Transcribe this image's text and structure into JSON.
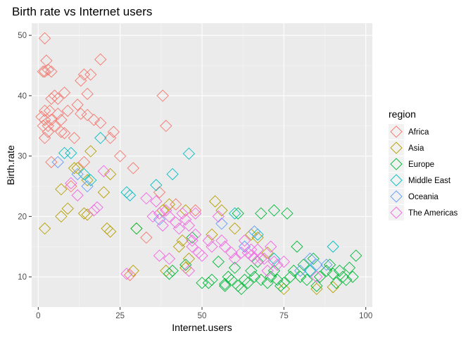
{
  "chart_data": {
    "type": "scatter",
    "title": "Birth rate vs Internet users",
    "xlabel": "Internet.users",
    "ylabel": "Birth.rate",
    "xlim": [
      -2,
      102
    ],
    "ylim": [
      5,
      52
    ],
    "xticks": [
      0,
      25,
      50,
      75,
      100
    ],
    "yticks": [
      10,
      20,
      30,
      40,
      50
    ],
    "xtick_labels": [
      "0",
      "25",
      "50",
      "75",
      "100"
    ],
    "ytick_labels": [
      "10",
      "20",
      "30",
      "40",
      "50"
    ],
    "grid": true,
    "marker": "hollow-diamond",
    "legend": {
      "title": "region",
      "position": "right"
    },
    "series": [
      {
        "name": "Africa",
        "color": "#F8766D",
        "points": [
          [
            2,
            49.5
          ],
          [
            2,
            44
          ],
          [
            2.5,
            45.8
          ],
          [
            3,
            44.3
          ],
          [
            1.5,
            44
          ],
          [
            4,
            44
          ],
          [
            4,
            39.5
          ],
          [
            5,
            40
          ],
          [
            6,
            39.5
          ],
          [
            8,
            40.5
          ],
          [
            13,
            42.5
          ],
          [
            14,
            43.5
          ],
          [
            16,
            43.5
          ],
          [
            19,
            46
          ],
          [
            15,
            40.3
          ],
          [
            12,
            38.5
          ],
          [
            13,
            37
          ],
          [
            15,
            36.8
          ],
          [
            9,
            37.5
          ],
          [
            1,
            36.5
          ],
          [
            2,
            37.5
          ],
          [
            1.5,
            35
          ],
          [
            2,
            33
          ],
          [
            3,
            34
          ],
          [
            2,
            36
          ],
          [
            3,
            35
          ],
          [
            4,
            36
          ],
          [
            5,
            35
          ],
          [
            3.5,
            37.5
          ],
          [
            6,
            37
          ],
          [
            7,
            34
          ],
          [
            7,
            36
          ],
          [
            8,
            33.8
          ],
          [
            11,
            33
          ],
          [
            17,
            36
          ],
          [
            19,
            35.5
          ],
          [
            23,
            34
          ],
          [
            22,
            33
          ],
          [
            25,
            30
          ],
          [
            29,
            28
          ],
          [
            38,
            40
          ],
          [
            39,
            35
          ],
          [
            37,
            24
          ],
          [
            42,
            22
          ],
          [
            48,
            21
          ],
          [
            33,
            16.5
          ],
          [
            28,
            10.3
          ],
          [
            4,
            29
          ],
          [
            14,
            29
          ],
          [
            10,
            25
          ]
        ]
      },
      {
        "name": "Asia",
        "color": "#B79F00",
        "points": [
          [
            2,
            18
          ],
          [
            7,
            20
          ],
          [
            9,
            21.3
          ],
          [
            14,
            20.5
          ],
          [
            15,
            20.3
          ],
          [
            12,
            28
          ],
          [
            15,
            26
          ],
          [
            20,
            24
          ],
          [
            16,
            30.8
          ],
          [
            22,
            17.5
          ],
          [
            22,
            27
          ],
          [
            29,
            11
          ],
          [
            30,
            18
          ],
          [
            38,
            21
          ],
          [
            45,
            21
          ],
          [
            43,
            15
          ],
          [
            45,
            11.5
          ],
          [
            39,
            11
          ],
          [
            46,
            13
          ],
          [
            44,
            16
          ],
          [
            54,
            22.5
          ],
          [
            56,
            21
          ],
          [
            60,
            18
          ],
          [
            65,
            17
          ],
          [
            67,
            16.5
          ],
          [
            70,
            14
          ],
          [
            75,
            8
          ],
          [
            90,
            8.3
          ],
          [
            85,
            8
          ],
          [
            7,
            24.5
          ],
          [
            11,
            28
          ],
          [
            21,
            18
          ],
          [
            40,
            22
          ],
          [
            53,
            17
          ]
        ]
      },
      {
        "name": "Europe",
        "color": "#00BA38",
        "points": [
          [
            30,
            18
          ],
          [
            40,
            10.5
          ],
          [
            41,
            11
          ],
          [
            45,
            12
          ],
          [
            47,
            16.5
          ],
          [
            50,
            9
          ],
          [
            52,
            9
          ],
          [
            53,
            9.5
          ],
          [
            55,
            12.5
          ],
          [
            57,
            8.8
          ],
          [
            58,
            10
          ],
          [
            59,
            9.5
          ],
          [
            60,
            11.5
          ],
          [
            61,
            8.5
          ],
          [
            62,
            8
          ],
          [
            63,
            9.5
          ],
          [
            65,
            11
          ],
          [
            66,
            10
          ],
          [
            67,
            12.5
          ],
          [
            68,
            9.5
          ],
          [
            70,
            9
          ],
          [
            71,
            10
          ],
          [
            72,
            11
          ],
          [
            73,
            9.5
          ],
          [
            74,
            8.5
          ],
          [
            75,
            9
          ],
          [
            77,
            10
          ],
          [
            78,
            11
          ],
          [
            79,
            15
          ],
          [
            80,
            10
          ],
          [
            81,
            12
          ],
          [
            82,
            9.5
          ],
          [
            83,
            11
          ],
          [
            84,
            13
          ],
          [
            85,
            8.5
          ],
          [
            86,
            10
          ],
          [
            88,
            11
          ],
          [
            89,
            12
          ],
          [
            90,
            10.5
          ],
          [
            91,
            9
          ],
          [
            92,
            11
          ],
          [
            93,
            10
          ],
          [
            94,
            9.5
          ],
          [
            95,
            11.5
          ],
          [
            96,
            10
          ],
          [
            97,
            13.5
          ],
          [
            72,
            21
          ],
          [
            76,
            20.5
          ],
          [
            61,
            20.5
          ],
          [
            68,
            20.5
          ],
          [
            57,
            8.5
          ],
          [
            64,
            9
          ]
        ]
      },
      {
        "name": "Middle East",
        "color": "#00BFC4",
        "points": [
          [
            8,
            30.5
          ],
          [
            10,
            30.5
          ],
          [
            14,
            27
          ],
          [
            16,
            26
          ],
          [
            19,
            33
          ],
          [
            27,
            24
          ],
          [
            28,
            23.5
          ],
          [
            36,
            25.2
          ],
          [
            41,
            27
          ],
          [
            46,
            30.4
          ],
          [
            60,
            20.5
          ],
          [
            67,
            17
          ],
          [
            72,
            13
          ],
          [
            83,
            11
          ],
          [
            90,
            15
          ]
        ]
      },
      {
        "name": "Oceania",
        "color": "#619CFF",
        "points": [
          [
            6,
            29
          ],
          [
            12,
            27
          ],
          [
            15,
            25
          ],
          [
            37,
            19.5
          ],
          [
            56,
            18.8
          ],
          [
            63,
            15
          ],
          [
            66,
            17.5
          ],
          [
            83,
            13
          ],
          [
            85,
            12
          ],
          [
            88,
            12
          ],
          [
            80,
            11
          ]
        ]
      },
      {
        "name": "The Americas",
        "color": "#F564E3",
        "points": [
          [
            10,
            25.5
          ],
          [
            12,
            23.5
          ],
          [
            17,
            21
          ],
          [
            18,
            21.5
          ],
          [
            20,
            27.5
          ],
          [
            33,
            23
          ],
          [
            35,
            20
          ],
          [
            36,
            22.5
          ],
          [
            37,
            20.5
          ],
          [
            38,
            18.5
          ],
          [
            39,
            21
          ],
          [
            40,
            20
          ],
          [
            42,
            19
          ],
          [
            43,
            18
          ],
          [
            44,
            20.5
          ],
          [
            45,
            19.5
          ],
          [
            46,
            18.5
          ],
          [
            47,
            16
          ],
          [
            47,
            15
          ],
          [
            48,
            17
          ],
          [
            49,
            14
          ],
          [
            50,
            13.5
          ],
          [
            52,
            16
          ],
          [
            53,
            15
          ],
          [
            55,
            20
          ],
          [
            56,
            16
          ],
          [
            57,
            15
          ],
          [
            59,
            14
          ],
          [
            60,
            13
          ],
          [
            62,
            14
          ],
          [
            63,
            16
          ],
          [
            64,
            14
          ],
          [
            65,
            13.5
          ],
          [
            66,
            13
          ],
          [
            67,
            14.5
          ],
          [
            68,
            13
          ],
          [
            70,
            11
          ],
          [
            71,
            15
          ],
          [
            72,
            12.5
          ],
          [
            73,
            12
          ],
          [
            75,
            12.5
          ],
          [
            85,
            10
          ],
          [
            37,
            13.5
          ],
          [
            40,
            13
          ],
          [
            46,
            11
          ],
          [
            27,
            10.5
          ],
          [
            48,
            20.5
          ],
          [
            65,
            14.5
          ],
          [
            69,
            13
          ]
        ]
      }
    ]
  }
}
